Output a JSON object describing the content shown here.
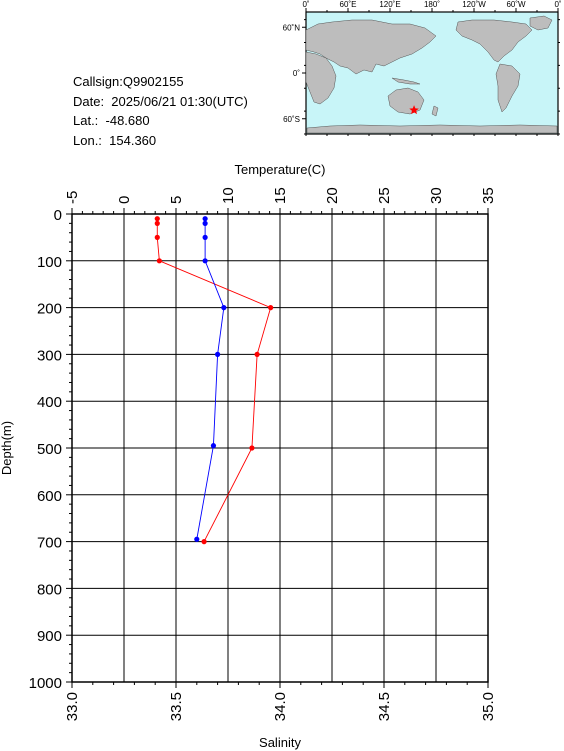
{
  "info": {
    "callsign": "Callsign:Q9902155",
    "date": "Date:  2025/06/21 01:30(UTC)",
    "lat": "Lat.:  -48.680",
    "lon": "Lon.:  154.360"
  },
  "map": {
    "top_labels": [
      "0˚",
      "60˚E",
      "120˚E",
      "180˚",
      "120˚W",
      "60˚W",
      "0˚"
    ],
    "left_labels": [
      "60˚N",
      "0˚",
      "60˚S"
    ],
    "ocean_color": "#c8f5f8",
    "land_color": "#bdbdbd",
    "marker_color": "#ff0000",
    "marker": {
      "lon": 154.36,
      "lat": -48.68
    }
  },
  "chart_data": {
    "type": "line",
    "title": "",
    "top_axis": {
      "label": "Temperature(C)",
      "range": [
        -5,
        35
      ],
      "ticks": [
        "-5",
        "0",
        "5",
        "10",
        "15",
        "20",
        "25",
        "30",
        "35"
      ]
    },
    "bottom_axis": {
      "label": "Salinity",
      "range": [
        33.0,
        35.0
      ],
      "ticks": [
        "33.0",
        "33.5",
        "34.0",
        "34.5",
        "35.0"
      ]
    },
    "y_axis": {
      "label": "Depth(m)",
      "range": [
        0,
        1000
      ],
      "inverted": true,
      "ticks": [
        "0",
        "100",
        "200",
        "300",
        "400",
        "500",
        "600",
        "700",
        "800",
        "900",
        "1000"
      ]
    },
    "grid": true,
    "series": [
      {
        "axis": "top",
        "color": "#ff0000",
        "points": [
          [
            3.2,
            10
          ],
          [
            3.2,
            20
          ],
          [
            3.2,
            50
          ],
          [
            3.4,
            100
          ],
          [
            14.1,
            200
          ],
          [
            12.8,
            300
          ],
          [
            12.3,
            500
          ],
          [
            7.7,
            700
          ]
        ]
      },
      {
        "axis": "bottom",
        "color": "#0000ff",
        "points": [
          [
            33.64,
            10
          ],
          [
            33.64,
            20
          ],
          [
            33.64,
            50
          ],
          [
            33.64,
            100
          ],
          [
            33.73,
            200
          ],
          [
            33.7,
            300
          ],
          [
            33.68,
            495
          ],
          [
            33.6,
            695
          ]
        ]
      }
    ]
  }
}
